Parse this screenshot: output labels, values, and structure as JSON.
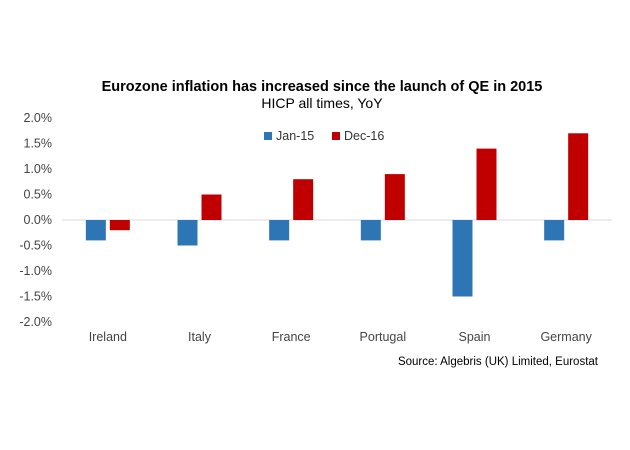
{
  "colors": {
    "series_1": "#2e75b6",
    "series_2": "#c00000",
    "zero_line": "#d9d9d9"
  },
  "chart_data": {
    "type": "bar",
    "title": "Eurozone inflation has increased since the launch of QE in 2015",
    "subtitle": "HICP all times, YoY",
    "categories": [
      "Ireland",
      "Italy",
      "France",
      "Portugal",
      "Spain",
      "Germany"
    ],
    "series": [
      {
        "name": "Jan-15",
        "values": [
          -0.4,
          -0.5,
          -0.4,
          -0.4,
          -1.5,
          -0.4
        ]
      },
      {
        "name": "Dec-16",
        "values": [
          -0.2,
          0.5,
          0.8,
          0.9,
          1.4,
          1.7
        ]
      }
    ],
    "ylim": [
      -2.0,
      2.0
    ],
    "yticks": [
      2.0,
      1.5,
      1.0,
      0.5,
      0.0,
      -0.5,
      -1.0,
      -1.5,
      -2.0
    ],
    "ytick_labels": [
      "2.0%",
      "1.5%",
      "1.0%",
      "0.5%",
      "0.0%",
      "-0.5%",
      "-1.0%",
      "-1.5%",
      "-2.0%"
    ],
    "legend_position": "top-center",
    "grid": false,
    "source": "Source: Algebris (UK) Limited, Eurostat"
  }
}
